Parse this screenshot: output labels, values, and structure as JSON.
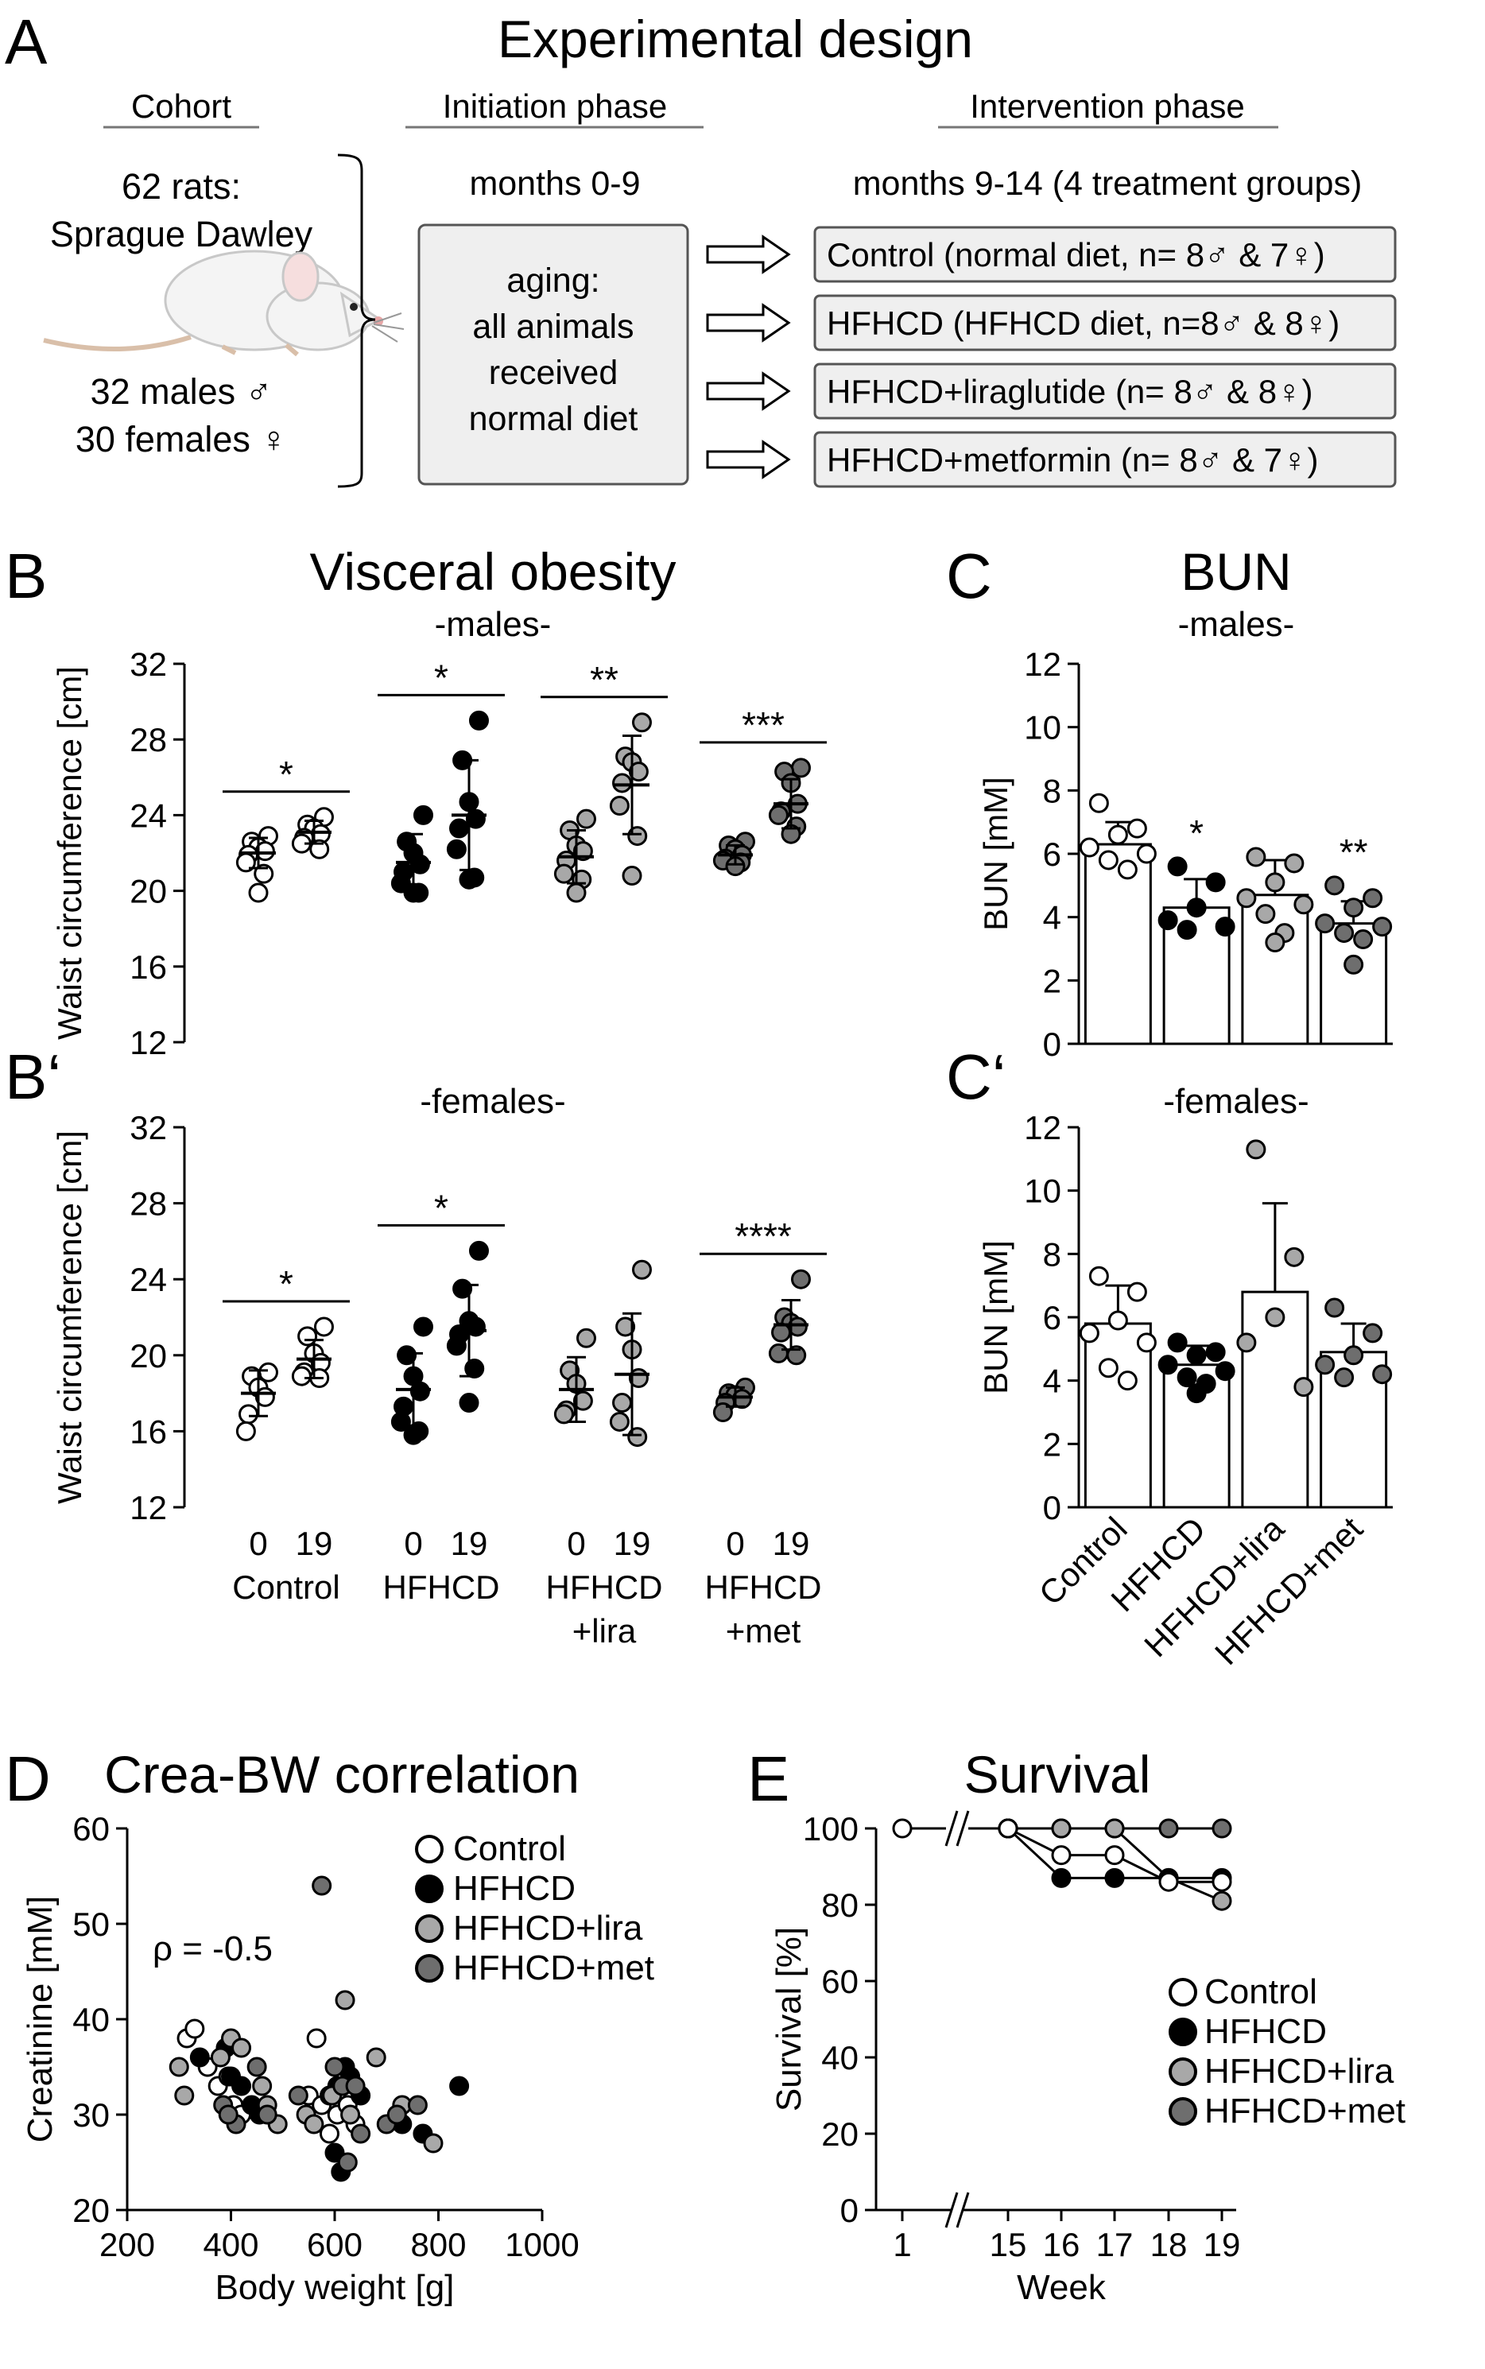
{
  "panels": {
    "A": {
      "letter": "A",
      "title": "Experimental design"
    },
    "B": {
      "letter": "B",
      "title": "Visceral obesity",
      "subtitle": "-males-"
    },
    "Bp": {
      "letter": "B‘",
      "subtitle": "-females-"
    },
    "C": {
      "letter": "C",
      "title": "BUN",
      "subtitle": "-males-"
    },
    "Cp": {
      "letter": "C‘",
      "subtitle": "-females-"
    },
    "D": {
      "letter": "D",
      "title": "Crea-BW correlation"
    },
    "E": {
      "letter": "E",
      "title": "Survival"
    }
  },
  "design": {
    "cohort_header": "Cohort",
    "initiation_header": "Initiation phase",
    "intervention_header": "Intervention phase",
    "cohort_line1": "62 rats:",
    "cohort_line2": "Sprague Dawley",
    "males_line": "32 males ♂",
    "females_line": "30 females ♀",
    "initiation_months": "months 0-9",
    "aging_lines": [
      "aging:",
      "all animals",
      "received",
      "normal diet"
    ],
    "intervention_months": "months 9-14 (4 treatment groups)",
    "groups": [
      "Control (normal diet, n= 8♂ & 7♀)",
      "HFHCD (HFHCD diet, n=8♂ & 8♀)",
      "HFHCD+liraglutide (n= 8♂ & 8♀)",
      "HFHCD+metformin (n= 8♂ & 7♀)"
    ]
  },
  "colors": {
    "control": "#ffffff",
    "hfhcd": "#000000",
    "lira": "#a8a8a8",
    "met": "#6e6e6e",
    "outline": "#000000",
    "flow_box": "#efefef"
  },
  "chart_data": [
    {
      "id": "B",
      "type": "scatter",
      "subtitle": "-males-",
      "ylabel": "Waist circumference [cm]",
      "ylim": [
        12,
        32
      ],
      "yticks": [
        12,
        16,
        20,
        24,
        28,
        32
      ],
      "groups": [
        {
          "name": "Control",
          "color": "control",
          "sig": "*",
          "week0": {
            "values": [
              22.9,
              22.6,
              22.3,
              22.1,
              21.9,
              21.5,
              20.9,
              19.9
            ],
            "mean": 22.0,
            "sd": 0.8
          },
          "week19": {
            "values": [
              23.9,
              23.5,
              23.3,
              23.0,
              22.8,
              22.5,
              22.2
            ],
            "mean": 23.1,
            "sd": 0.6
          }
        },
        {
          "name": "HFHCD",
          "color": "hfhcd",
          "sig": "*",
          "week0": {
            "values": [
              24.0,
              22.6,
              22.0,
              21.4,
              21.0,
              20.4,
              19.9,
              19.9
            ],
            "mean": 21.5,
            "sd": 1.5
          },
          "week19": {
            "values": [
              29.0,
              26.9,
              24.7,
              23.8,
              23.3,
              22.2,
              20.7,
              20.6
            ],
            "mean": 24.0,
            "sd": 2.9
          }
        },
        {
          "name": "HFHCD+lira",
          "color": "lira",
          "sig": "**",
          "week0": {
            "values": [
              23.8,
              23.2,
              22.4,
              22.1,
              21.6,
              20.9,
              20.6,
              19.9
            ],
            "mean": 21.8,
            "sd": 1.4
          },
          "week19": {
            "values": [
              28.9,
              27.1,
              26.8,
              26.3,
              25.7,
              24.5,
              22.9,
              20.8
            ],
            "mean": 25.6,
            "sd": 2.6
          }
        },
        {
          "name": "HFHCD+met",
          "color": "met",
          "sig": "***",
          "week0": {
            "values": [
              22.6,
              22.4,
              22.2,
              21.9,
              21.7,
              21.6,
              21.5,
              21.3
            ],
            "mean": 21.9,
            "sd": 0.5
          },
          "week19": {
            "values": [
              26.5,
              26.3,
              25.7,
              24.6,
              24.2,
              24.0,
              23.4,
              23.0
            ],
            "mean": 24.6,
            "sd": 1.3
          }
        }
      ]
    },
    {
      "id": "Bp",
      "type": "scatter",
      "subtitle": "-females-",
      "ylabel": "Waist circumference [cm]",
      "ylim": [
        12,
        32
      ],
      "yticks": [
        12,
        16,
        20,
        24,
        28,
        32
      ],
      "xticks": [
        "0",
        "19"
      ],
      "group_labels": [
        [
          "Control"
        ],
        [
          "HFHCD"
        ],
        [
          "HFHCD",
          "+lira"
        ],
        [
          "HFHCD",
          "+met"
        ]
      ],
      "groups": [
        {
          "name": "Control",
          "color": "control",
          "sig": "*",
          "week0": {
            "values": [
              19.1,
              18.9,
              18.3,
              17.8,
              16.9,
              16.0
            ],
            "mean": 18.0,
            "sd": 1.2
          },
          "week19": {
            "values": [
              21.5,
              21.0,
              20.1,
              19.6,
              19.1,
              18.9,
              18.8
            ],
            "mean": 19.8,
            "sd": 1.0
          }
        },
        {
          "name": "HFHCD",
          "color": "hfhcd",
          "sig": "*",
          "week0": {
            "values": [
              21.5,
              20.0,
              18.9,
              18.1,
              17.3,
              16.5,
              16.0,
              15.8
            ],
            "mean": 18.2,
            "sd": 1.9
          },
          "week19": {
            "values": [
              25.5,
              23.5,
              21.8,
              21.5,
              21.1,
              20.5,
              19.3,
              17.5
            ],
            "mean": 21.3,
            "sd": 2.4
          }
        },
        {
          "name": "HFHCD+lira",
          "color": "lira",
          "sig": "",
          "week0": {
            "values": [
              20.9,
              19.2,
              18.5,
              17.6,
              17.1,
              16.9
            ],
            "mean": 18.2,
            "sd": 1.7
          },
          "week19": {
            "values": [
              24.5,
              21.5,
              20.3,
              18.8,
              17.5,
              16.5,
              15.7
            ],
            "mean": 19.0,
            "sd": 3.2
          }
        },
        {
          "name": "HFHCD+met",
          "color": "met",
          "sig": "****",
          "week0": {
            "values": [
              18.3,
              18.0,
              17.9,
              17.7,
              17.5,
              17.0
            ],
            "mean": 17.8,
            "sd": 0.5
          },
          "week19": {
            "values": [
              24.0,
              22.0,
              21.7,
              21.5,
              21.2,
              20.1,
              20.0
            ],
            "mean": 21.6,
            "sd": 1.3
          }
        }
      ]
    },
    {
      "id": "C",
      "type": "bar",
      "subtitle": "-males-",
      "ylabel": "BUN [mM]",
      "ylim": [
        0,
        12
      ],
      "yticks": [
        0,
        2,
        4,
        6,
        8,
        10,
        12
      ],
      "categories": [
        "Control",
        "HFHCD",
        "HFHCD+lira",
        "HFHCD+met"
      ],
      "colors": [
        "control",
        "hfhcd",
        "lira",
        "met"
      ],
      "values": [
        6.3,
        4.3,
        4.7,
        3.8
      ],
      "sd": [
        0.7,
        0.9,
        1.1,
        0.7
      ],
      "sig": [
        "",
        "*",
        "",
        "**"
      ],
      "points": [
        [
          7.6,
          6.8,
          6.6,
          6.2,
          6.0,
          5.8,
          5.5
        ],
        [
          5.6,
          5.1,
          4.3,
          3.9,
          3.7,
          3.6
        ],
        [
          5.9,
          5.7,
          5.1,
          4.6,
          4.4,
          4.1,
          3.5,
          3.2
        ],
        [
          5.0,
          4.6,
          4.3,
          3.8,
          3.7,
          3.5,
          3.3,
          2.5
        ]
      ]
    },
    {
      "id": "Cp",
      "type": "bar",
      "subtitle": "-females-",
      "ylabel": "BUN [mM]",
      "ylim": [
        0,
        12
      ],
      "yticks": [
        0,
        2,
        4,
        6,
        8,
        10,
        12
      ],
      "categories": [
        "Control",
        "HFHCD",
        "HFHCD+lira",
        "HFHCD+met"
      ],
      "colors": [
        "control",
        "hfhcd",
        "lira",
        "met"
      ],
      "values": [
        5.8,
        4.5,
        6.8,
        4.9
      ],
      "sd": [
        1.2,
        0.6,
        2.8,
        0.9
      ],
      "sig": [
        "",
        "",
        "",
        ""
      ],
      "points": [
        [
          7.3,
          6.8,
          5.9,
          5.5,
          5.2,
          4.4,
          4.0
        ],
        [
          5.2,
          4.9,
          4.8,
          4.5,
          4.3,
          4.1,
          3.9,
          3.6
        ],
        [
          11.3,
          7.9,
          6.0,
          5.2,
          3.8
        ],
        [
          6.3,
          5.5,
          4.8,
          4.5,
          4.2,
          4.1
        ]
      ]
    },
    {
      "id": "D",
      "type": "scatter",
      "xlabel": "Body weight [g]",
      "ylabel": "Creatinine [mM]",
      "xlim": [
        200,
        1000
      ],
      "ylim": [
        20,
        60
      ],
      "xticks": [
        200,
        400,
        600,
        800,
        1000
      ],
      "yticks": [
        20,
        30,
        40,
        50,
        60
      ],
      "annotation": "ρ = -0.5",
      "series": [
        {
          "name": "Control",
          "color": "control",
          "points": [
            [
              315,
              38
            ],
            [
              330,
              39
            ],
            [
              355,
              35
            ],
            [
              375,
              33
            ],
            [
              395,
              34
            ],
            [
              405,
              31
            ],
            [
              420,
              30
            ],
            [
              550,
              32
            ],
            [
              565,
              38
            ],
            [
              575,
              31
            ],
            [
              590,
              28
            ],
            [
              605,
              30
            ],
            [
              615,
              33
            ],
            [
              625,
              31
            ],
            [
              640,
              29
            ]
          ]
        },
        {
          "name": "HFHCD",
          "color": "hfhcd",
          "points": [
            [
              340,
              36
            ],
            [
              390,
              37
            ],
            [
              400,
              34
            ],
            [
              420,
              33
            ],
            [
              440,
              31
            ],
            [
              455,
              30
            ],
            [
              590,
              32
            ],
            [
              605,
              33
            ],
            [
              620,
              35
            ],
            [
              630,
              34
            ],
            [
              650,
              32
            ],
            [
              730,
              29
            ],
            [
              770,
              28
            ],
            [
              840,
              33
            ],
            [
              612,
              24
            ],
            [
              600,
              26
            ]
          ]
        },
        {
          "name": "HFHCD+lira",
          "color": "lira",
          "points": [
            [
              300,
              35
            ],
            [
              310,
              32
            ],
            [
              380,
              36
            ],
            [
              400,
              38
            ],
            [
              420,
              37
            ],
            [
              460,
              33
            ],
            [
              470,
              31
            ],
            [
              490,
              29
            ],
            [
              545,
              30
            ],
            [
              560,
              29
            ],
            [
              595,
              32
            ],
            [
              620,
              42
            ],
            [
              630,
              30
            ],
            [
              680,
              36
            ],
            [
              730,
              31
            ],
            [
              790,
              27
            ]
          ]
        },
        {
          "name": "HFHCD+met",
          "color": "met",
          "points": [
            [
              385,
              31
            ],
            [
              410,
              29
            ],
            [
              450,
              35
            ],
            [
              575,
              54
            ],
            [
              600,
              35
            ],
            [
              615,
              33
            ],
            [
              625,
              25
            ],
            [
              640,
              33
            ],
            [
              700,
              29
            ],
            [
              720,
              30
            ],
            [
              760,
              31
            ],
            [
              650,
              28
            ],
            [
              395,
              30
            ],
            [
              470,
              30
            ],
            [
              530,
              32
            ]
          ]
        }
      ]
    },
    {
      "id": "E",
      "type": "line",
      "xlabel": "Week",
      "ylabel": "Survival [%]",
      "xticks": [
        "1",
        "15",
        "16",
        "17",
        "18",
        "19"
      ],
      "ylim": [
        0,
        100
      ],
      "yticks": [
        0,
        20,
        40,
        60,
        80,
        100
      ],
      "series": [
        {
          "name": "Control",
          "color": "control",
          "x": [
            15,
            16,
            17,
            18,
            19
          ],
          "y": [
            100,
            93,
            93,
            86,
            86
          ]
        },
        {
          "name": "HFHCD",
          "color": "hfhcd",
          "x": [
            15,
            16,
            17,
            18,
            19
          ],
          "y": [
            100,
            87,
            87,
            87,
            87
          ]
        },
        {
          "name": "HFHCD+lira",
          "color": "lira",
          "x": [
            15,
            16,
            17,
            18,
            19
          ],
          "y": [
            100,
            100,
            100,
            87,
            81
          ]
        },
        {
          "name": "HFHCD+met",
          "color": "met",
          "x": [
            1,
            15,
            16,
            17,
            18,
            19
          ],
          "y": [
            100,
            100,
            100,
            100,
            100,
            100
          ]
        }
      ]
    }
  ]
}
